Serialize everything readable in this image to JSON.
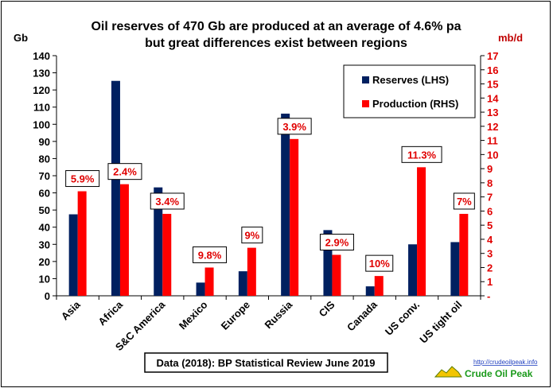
{
  "chart_data": {
    "type": "bar",
    "title_lines": [
      "Oil reserves of 470 Gb are produced at an average of 4.6% pa",
      "but great differences exist between regions"
    ],
    "y_left_label": "Gb",
    "y_right_label": "mb/d",
    "y_left_range": [
      0,
      140
    ],
    "y_left_ticks": [
      "0",
      "10",
      "20",
      "30",
      "40",
      "50",
      "60",
      "70",
      "80",
      "90",
      "100",
      "110",
      "120",
      "130",
      "140"
    ],
    "y_right_range": [
      0,
      17
    ],
    "y_right_ticks": [
      "-",
      "1",
      "2",
      "3",
      "4",
      "5",
      "6",
      "7",
      "8",
      "9",
      "10",
      "11",
      "12",
      "13",
      "14",
      "15",
      "16",
      "17"
    ],
    "categories": [
      "Asia",
      "Africa",
      "S&C America",
      "Mexico",
      "Europe",
      "Russia",
      "CIS",
      "Canada",
      "US conv.",
      "US tight oil"
    ],
    "series": [
      {
        "name": "Reserves (LHS)",
        "axis": "left",
        "color": "#002060",
        "values": [
          47.5,
          125.3,
          63.2,
          7.7,
          14.3,
          106.2,
          38.3,
          5.5,
          30,
          31.3
        ]
      },
      {
        "name": "Production (RHS)",
        "axis": "right",
        "color": "#ff0000",
        "values": [
          7.4,
          7.9,
          5.8,
          2.0,
          3.4,
          11.1,
          2.9,
          1.4,
          9.1,
          5.8
        ]
      }
    ],
    "annotations": [
      "5.9%",
      "2.4%",
      "3.4%",
      "9.8%",
      "9%",
      "3.9%",
      "2.9%",
      "10%",
      "11.3%",
      "7%"
    ],
    "legend_position": "top-right",
    "grid": false,
    "source_note": "Data (2018): BP Statistical Review June 2019",
    "logo": {
      "url_text": "http://crudeoilpeak.info",
      "name": "Crude Oil Peak"
    }
  }
}
